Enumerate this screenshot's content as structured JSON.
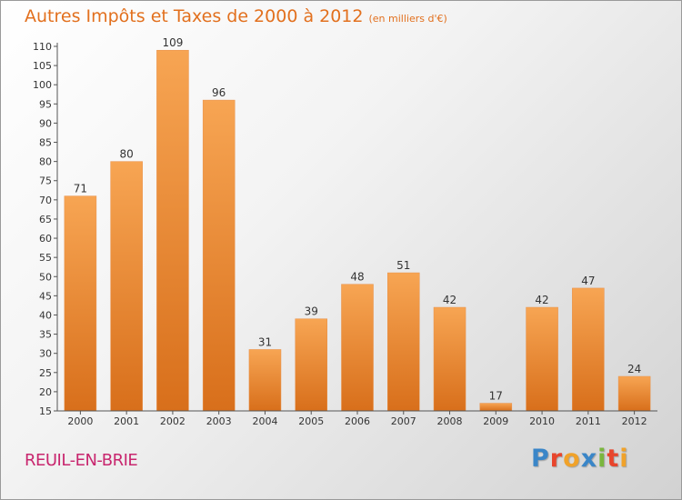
{
  "header": {
    "title": "Autres Impôts et Taxes de 2000 à 2012",
    "subtitle": "(en milliers d'€)"
  },
  "footer": {
    "commune": "REUIL-EN-BRIE",
    "logo_letters": [
      "P",
      "r",
      "o",
      "x",
      "i",
      "t",
      "i"
    ],
    "logo_colors": [
      "#3a86c8",
      "#e8452c",
      "#f0a22a",
      "#3a86c8",
      "#7ab63e",
      "#e8452c",
      "#f0a22a"
    ]
  },
  "chart_data": {
    "type": "bar",
    "categories": [
      "2000",
      "2001",
      "2002",
      "2003",
      "2004",
      "2005",
      "2006",
      "2007",
      "2008",
      "2009",
      "2010",
      "2011",
      "2012"
    ],
    "values": [
      71,
      80,
      109,
      96,
      31,
      39,
      48,
      51,
      42,
      17,
      42,
      47,
      24
    ],
    "title": "Autres Impôts et Taxes de 2000 à 2012",
    "xlabel": "",
    "ylabel": "",
    "ylim": [
      15,
      110
    ],
    "yticks": [
      15,
      20,
      25,
      30,
      35,
      40,
      45,
      50,
      55,
      60,
      65,
      70,
      75,
      80,
      85,
      90,
      95,
      100,
      105,
      110
    ],
    "grid": false,
    "bar_color_top": "#f7a553",
    "bar_color_bottom": "#d86f1b"
  }
}
